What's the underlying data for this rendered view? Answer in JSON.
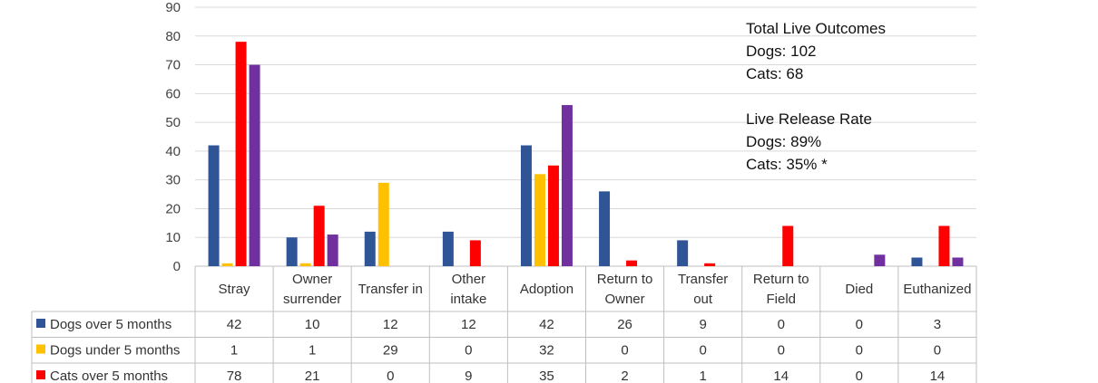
{
  "chart_data": {
    "type": "bar",
    "ylim": [
      0,
      90
    ],
    "yticks": [
      0,
      10,
      20,
      30,
      40,
      50,
      60,
      70,
      80,
      90
    ],
    "grid": true,
    "categories": [
      [
        "Stray"
      ],
      [
        "Owner",
        "surrender"
      ],
      [
        "Transfer in"
      ],
      [
        "Other",
        "intake"
      ],
      [
        "Adoption"
      ],
      [
        "Return to",
        "Owner"
      ],
      [
        "Transfer",
        "out"
      ],
      [
        "Return to",
        "Field"
      ],
      [
        "Died"
      ],
      [
        "Euthanized"
      ]
    ],
    "series": [
      {
        "name": "Dogs over 5 months",
        "color": "#2F5597",
        "values": [
          42,
          10,
          12,
          12,
          42,
          26,
          9,
          0,
          0,
          3
        ],
        "in_table": true
      },
      {
        "name": "Dogs under 5 months",
        "color": "#FFC000",
        "values": [
          1,
          1,
          29,
          0,
          32,
          0,
          0,
          0,
          0,
          0
        ],
        "in_table": true
      },
      {
        "name": "Cats over 5 months",
        "color": "#FF0000",
        "values": [
          78,
          21,
          0,
          9,
          35,
          2,
          1,
          14,
          0,
          14
        ],
        "in_table": true
      },
      {
        "color": "#7030A0",
        "values": [
          70,
          11,
          0,
          0,
          56,
          0,
          0,
          0,
          4,
          3
        ],
        "in_table": false
      }
    ],
    "annotations": [
      "Total Live Outcomes",
      "Dogs: 102",
      "Cats: 68",
      "",
      "Live Release Rate",
      "Dogs: 89%",
      "Cats: 35% *"
    ]
  }
}
